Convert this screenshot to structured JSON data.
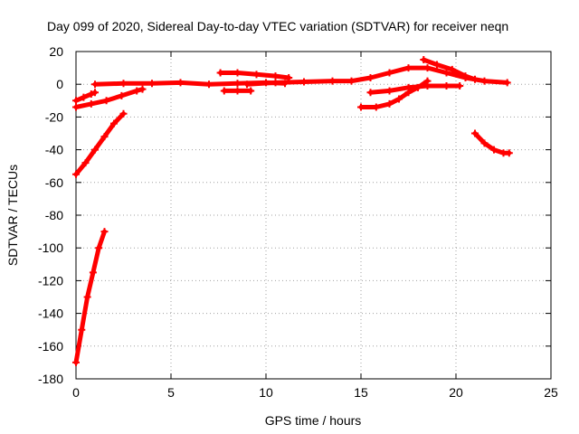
{
  "chart_data": {
    "type": "scatter",
    "title": "Day 099 of 2020, Sidereal Day-to-day VTEC variation (SDTVAR) for receiver neqn",
    "xlabel": "GPS time / hours",
    "ylabel": "SDTVAR / TECUs",
    "xlim": [
      0,
      25
    ],
    "ylim": [
      -180,
      20
    ],
    "x_ticks": [
      0,
      5,
      10,
      15,
      20,
      25
    ],
    "y_ticks": [
      20,
      0,
      -20,
      -40,
      -60,
      -80,
      -100,
      -120,
      -140,
      -160,
      -180
    ],
    "grid": true,
    "color": "#ff0000",
    "series": [
      {
        "points": [
          [
            0.0,
            -170
          ],
          [
            0.3,
            -150
          ],
          [
            0.6,
            -130
          ],
          [
            0.9,
            -115
          ],
          [
            1.2,
            -100
          ],
          [
            1.5,
            -90
          ]
        ]
      },
      {
        "points": [
          [
            0.0,
            -55
          ],
          [
            0.5,
            -48
          ],
          [
            1.0,
            -40
          ],
          [
            1.5,
            -32
          ],
          [
            2.0,
            -24
          ],
          [
            2.5,
            -18
          ]
        ]
      },
      {
        "points": [
          [
            0.0,
            -14
          ],
          [
            0.8,
            -12
          ],
          [
            1.6,
            -10
          ],
          [
            2.4,
            -7
          ],
          [
            3.2,
            -4
          ],
          [
            3.5,
            -3
          ]
        ]
      },
      {
        "points": [
          [
            0.0,
            -10
          ],
          [
            0.4,
            -8
          ],
          [
            0.8,
            -6
          ],
          [
            1.0,
            -5
          ]
        ]
      },
      {
        "points": [
          [
            1.0,
            0
          ],
          [
            2.5,
            0.5
          ],
          [
            4.0,
            0.5
          ],
          [
            5.5,
            1
          ],
          [
            7.0,
            0
          ],
          [
            8.5,
            0.5
          ],
          [
            10.0,
            1
          ],
          [
            11.0,
            0.5
          ]
        ]
      },
      {
        "points": [
          [
            7.6,
            7
          ],
          [
            8.5,
            7
          ],
          [
            9.5,
            6
          ],
          [
            10.5,
            5
          ],
          [
            11.2,
            4
          ]
        ]
      },
      {
        "points": [
          [
            7.8,
            -4
          ],
          [
            8.5,
            -4
          ],
          [
            9.2,
            -4
          ]
        ]
      },
      {
        "points": [
          [
            9.0,
            0
          ],
          [
            10.5,
            1
          ],
          [
            12.0,
            1.5
          ],
          [
            13.5,
            2
          ],
          [
            14.5,
            2
          ],
          [
            15.5,
            4
          ],
          [
            16.5,
            7
          ],
          [
            17.5,
            10
          ],
          [
            18.5,
            10
          ],
          [
            19.5,
            7
          ],
          [
            20.5,
            4
          ],
          [
            21.5,
            2
          ],
          [
            22.7,
            1
          ]
        ]
      },
      {
        "points": [
          [
            18.3,
            15
          ],
          [
            19.0,
            12
          ],
          [
            19.8,
            9
          ],
          [
            20.5,
            5
          ],
          [
            21.0,
            3
          ]
        ]
      },
      {
        "points": [
          [
            15.0,
            -14
          ],
          [
            15.8,
            -14
          ],
          [
            16.5,
            -12
          ],
          [
            17.0,
            -9
          ],
          [
            17.5,
            -5
          ],
          [
            18.0,
            -2
          ],
          [
            18.5,
            2
          ]
        ]
      },
      {
        "points": [
          [
            15.5,
            -5
          ],
          [
            16.5,
            -4
          ],
          [
            17.5,
            -2
          ],
          [
            18.5,
            -1
          ],
          [
            19.5,
            -1
          ],
          [
            20.2,
            -1
          ]
        ]
      },
      {
        "points": [
          [
            21.0,
            -30
          ],
          [
            21.5,
            -36
          ],
          [
            22.0,
            -40
          ],
          [
            22.5,
            -42
          ],
          [
            22.8,
            -42
          ]
        ]
      }
    ]
  }
}
